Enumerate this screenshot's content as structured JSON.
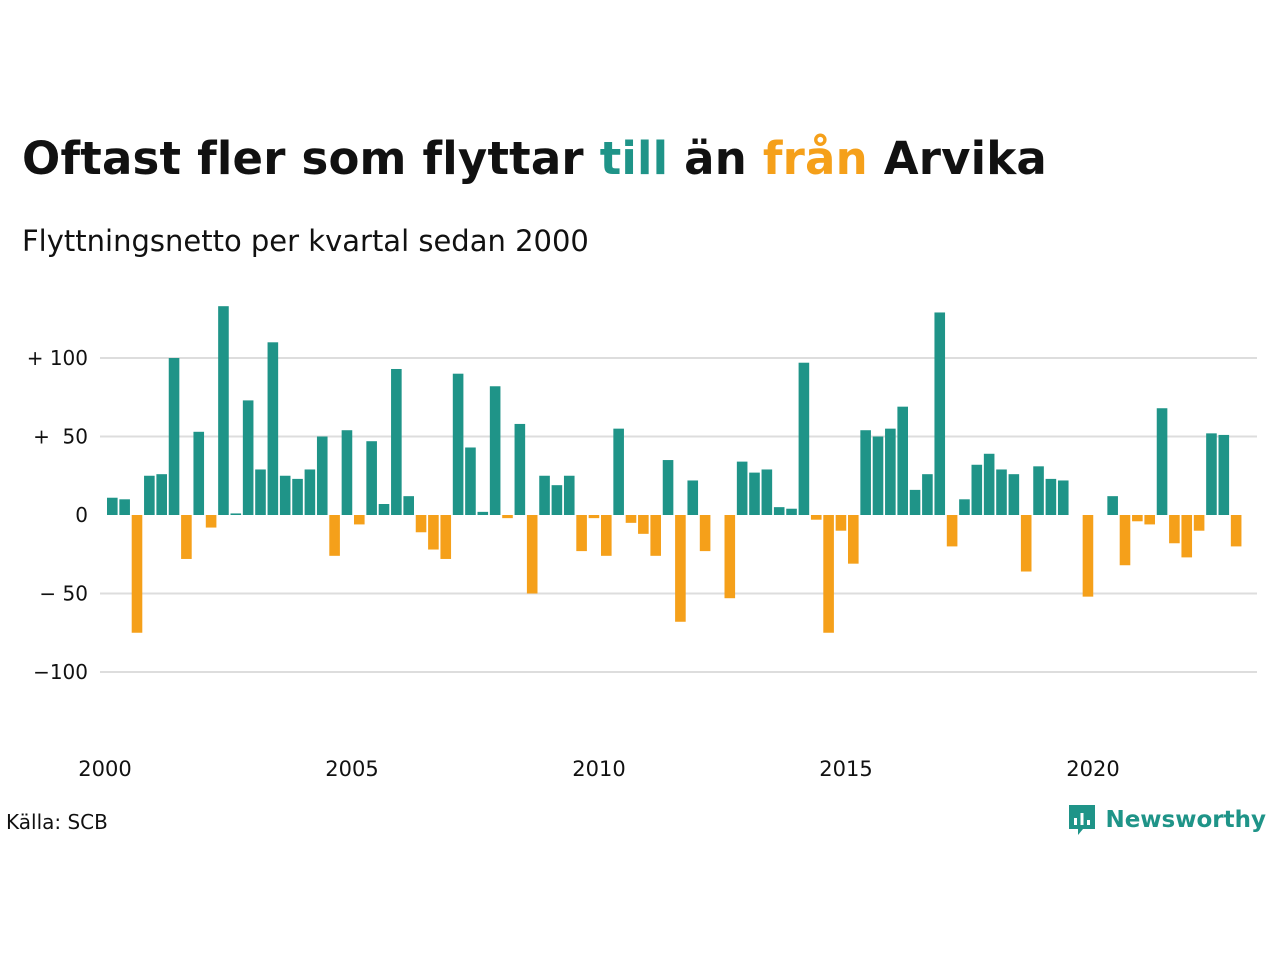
{
  "title": {
    "part1": "Oftast fler som flyttar ",
    "word_in": "till",
    "part2": " än ",
    "word_out": "från",
    "part3": " Arvika"
  },
  "subtitle": "Flyttningsnetto per kvartal sedan 2000",
  "source": "Källa: SCB",
  "brand": {
    "name": "Newsworthy",
    "icon": "newsworthy-logo-icon"
  },
  "colors": {
    "positive": "#1f9488",
    "negative": "#f5a01a",
    "grid": "#dddddd",
    "text": "#111111"
  },
  "chart_data": {
    "type": "bar",
    "title": "Oftast fler som flyttar till än från Arvika",
    "subtitle": "Flyttningsnetto per kvartal sedan 2000",
    "xlabel": "",
    "ylabel": "",
    "start": {
      "year": 2000,
      "quarter": 1
    },
    "x_ticks": [
      "2000",
      "2005",
      "2010",
      "2015",
      "2020"
    ],
    "y_ticks": [
      {
        "value": 100,
        "label": "+ 100"
      },
      {
        "value": 50,
        "label": "+  50"
      },
      {
        "value": 0,
        "label": "0"
      },
      {
        "value": -50,
        "label": "− 50"
      },
      {
        "value": -100,
        "label": "−100"
      }
    ],
    "ylim": [
      -145,
      135
    ],
    "grid": true,
    "legend": "none",
    "values": [
      11,
      10,
      -75,
      25,
      26,
      100,
      -28,
      53,
      -8,
      133,
      1,
      73,
      29,
      110,
      25,
      23,
      29,
      50,
      -26,
      54,
      -6,
      47,
      7,
      93,
      12,
      -11,
      -22,
      -28,
      90,
      43,
      2,
      82,
      -2,
      58,
      -50,
      25,
      19,
      25,
      -23,
      -2,
      -26,
      55,
      -5,
      -12,
      -26,
      35,
      -68,
      22,
      -23,
      0,
      -53,
      34,
      27,
      29,
      5,
      4,
      97,
      -3,
      -75,
      -10,
      -31,
      54,
      50,
      55,
      69,
      16,
      26,
      129,
      -20,
      10,
      32,
      39,
      29,
      26,
      -36,
      31,
      23,
      22,
      0,
      -52,
      0,
      12,
      -32,
      -4,
      -6,
      68,
      -18,
      -27,
      -10,
      52,
      51,
      -20
    ]
  }
}
